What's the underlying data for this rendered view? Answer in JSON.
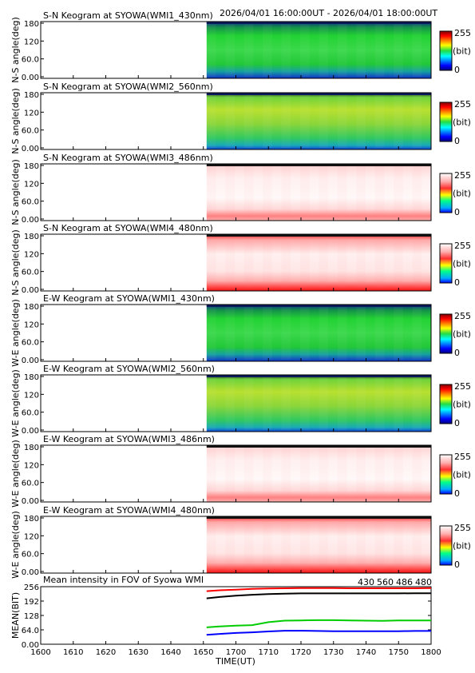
{
  "header": {
    "time_range": "2026/04/01 16:00:00UT - 2026/04/01 18:00:00UT"
  },
  "colorbar": {
    "max_label": "255",
    "unit_label": "(bit)",
    "min_label": "0"
  },
  "colors": {
    "series_430": "#0000ff",
    "series_560": "#00cc00",
    "series_486": "#ff0000",
    "series_480": "#000000"
  },
  "chart_data": [
    {
      "type": "heatmap",
      "direction": "NS",
      "colormap": "jet",
      "style": "green",
      "title": "S-N Keogram at SYOWA(WMI1_430nm)",
      "ylabel": "N-S angle(deg)",
      "yticks": [
        "180",
        "120",
        "60.0",
        "0.00"
      ],
      "ylim": [
        0,
        180
      ],
      "xlim": [
        1600,
        1800
      ],
      "data_start": 1651,
      "value_range": [
        0,
        255
      ]
    },
    {
      "type": "heatmap",
      "direction": "NS",
      "colormap": "jet",
      "style": "yellowgreen",
      "title": "S-N Keogram at SYOWA(WMI2_560nm)",
      "ylabel": "N-S angle(deg)",
      "yticks": [
        "180",
        "120",
        "60.0",
        "0.00"
      ],
      "ylim": [
        0,
        180
      ],
      "xlim": [
        1600,
        1800
      ],
      "data_start": 1651,
      "value_range": [
        0,
        255
      ]
    },
    {
      "type": "heatmap",
      "direction": "NS",
      "colormap": "white-red",
      "style": "pale",
      "title": "S-N Keogram at SYOWA(WMI3_486nm)",
      "ylabel": "N-S angle(deg)",
      "yticks": [
        "180",
        "120",
        "60.0",
        "0.00"
      ],
      "ylim": [
        0,
        180
      ],
      "xlim": [
        1600,
        1800
      ],
      "data_start": 1651,
      "value_range": [
        0,
        255
      ]
    },
    {
      "type": "heatmap",
      "direction": "NS",
      "colormap": "white-red",
      "style": "redband",
      "title": "S-N Keogram at SYOWA(WMI4_480nm)",
      "ylabel": "N-S angle(deg)",
      "yticks": [
        "180",
        "120",
        "60.0",
        "0.00"
      ],
      "ylim": [
        0,
        180
      ],
      "xlim": [
        1600,
        1800
      ],
      "data_start": 1651,
      "value_range": [
        0,
        255
      ]
    },
    {
      "type": "heatmap",
      "direction": "EW",
      "colormap": "jet",
      "style": "green",
      "title": "E-W Keogram at SYOWA(WMI1_430nm)",
      "ylabel": "W-E angle(deg)",
      "yticks": [
        "180",
        "120",
        "60.0",
        "0.00"
      ],
      "ylim": [
        0,
        180
      ],
      "xlim": [
        1600,
        1800
      ],
      "data_start": 1651,
      "value_range": [
        0,
        255
      ]
    },
    {
      "type": "heatmap",
      "direction": "EW",
      "colormap": "jet",
      "style": "yellowgreen",
      "title": "E-W Keogram at SYOWA(WMI2_560nm)",
      "ylabel": "W-E angle(deg)",
      "yticks": [
        "180",
        "120",
        "60.0",
        "0.00"
      ],
      "ylim": [
        0,
        180
      ],
      "xlim": [
        1600,
        1800
      ],
      "data_start": 1651,
      "value_range": [
        0,
        255
      ]
    },
    {
      "type": "heatmap",
      "direction": "EW",
      "colormap": "white-red",
      "style": "pale",
      "title": "E-W Keogram at SYOWA(WMI3_486nm)",
      "ylabel": "W-E angle(deg)",
      "yticks": [
        "180",
        "120",
        "60.0",
        "0.00"
      ],
      "ylim": [
        0,
        180
      ],
      "xlim": [
        1600,
        1800
      ],
      "data_start": 1651,
      "value_range": [
        0,
        255
      ]
    },
    {
      "type": "heatmap",
      "direction": "EW",
      "colormap": "white-red",
      "style": "redband",
      "title": "E-W Keogram at SYOWA(WMI4_480nm)",
      "ylabel": "W-E angle(deg)",
      "yticks": [
        "180",
        "120",
        "60.0",
        "0.00"
      ],
      "ylim": [
        0,
        180
      ],
      "xlim": [
        1600,
        1800
      ],
      "data_start": 1651,
      "value_range": [
        0,
        255
      ]
    },
    {
      "type": "line",
      "title": "Mean intensity in FOV of Syowa WMI",
      "ylabel": "MEAN(BIT)",
      "xlabel": "TIME(UT)",
      "xlim": [
        1600,
        1800
      ],
      "ylim": [
        0,
        256
      ],
      "yticks": [
        "256",
        "192",
        "128",
        "64.0",
        "0.00"
      ],
      "yticks_values": [
        256,
        192,
        128,
        64,
        0
      ],
      "xticks": [
        "1600",
        "1610",
        "1620",
        "1630",
        "1640",
        "1650",
        "1700",
        "1710",
        "1720",
        "1730",
        "1740",
        "1750",
        "1800"
      ],
      "x": [
        1651,
        1655,
        1700,
        1705,
        1710,
        1715,
        1720,
        1725,
        1730,
        1735,
        1740,
        1745,
        1750,
        1755,
        1800
      ],
      "series": [
        {
          "name": "430",
          "color": "#0000ff",
          "values": [
            42,
            46,
            50,
            53,
            57,
            60,
            60,
            59,
            58,
            58,
            58,
            58,
            58,
            59,
            59
          ]
        },
        {
          "name": "560",
          "color": "#00cc00",
          "values": [
            75,
            79,
            83,
            85,
            98,
            105,
            106,
            107,
            107,
            106,
            105,
            104,
            106,
            106,
            106
          ]
        },
        {
          "name": "486",
          "color": "#ff0000",
          "values": [
            236,
            240,
            243,
            246,
            248,
            249,
            250,
            250,
            250,
            249,
            249,
            249,
            249,
            249,
            250
          ]
        },
        {
          "name": "480",
          "color": "#000000",
          "values": [
            204,
            210,
            216,
            220,
            223,
            225,
            226,
            226,
            226,
            226,
            226,
            226,
            226,
            227,
            227
          ]
        }
      ]
    }
  ]
}
